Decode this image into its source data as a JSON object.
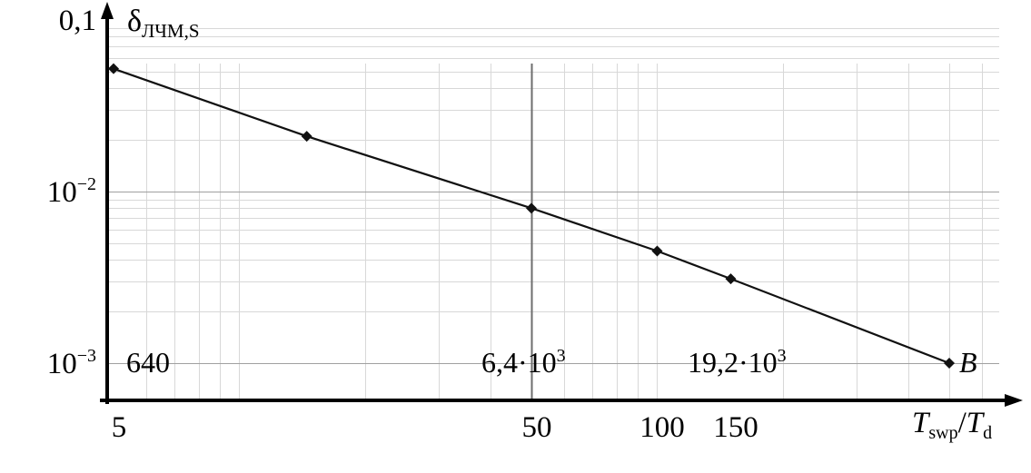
{
  "figure": {
    "background": "#ffffff"
  },
  "chart_data": {
    "type": "line",
    "x_scale": "log",
    "y_scale": "log",
    "xlim": [
      5,
      700
    ],
    "ylim": [
      0.001,
      0.1
    ],
    "grid": "on",
    "x_label_parts": [
      {
        "t": "T",
        "italic": true
      },
      {
        "t": "swp",
        "sub": true
      },
      {
        "t": "/"
      },
      {
        "t": "T",
        "italic": true
      },
      {
        "t": "d",
        "sub": true
      }
    ],
    "y_label_parts": [
      {
        "t": "δ"
      },
      {
        "t": "ЛЧМ,S",
        "sub": true
      }
    ],
    "series": [
      {
        "name": "lfm-quantization-error",
        "x": [
          5,
          14.5,
          50,
          100,
          150,
          500
        ],
        "y": [
          0.052,
          0.021,
          0.008,
          0.0045,
          0.0031,
          0.001
        ],
        "color": "#111111",
        "marker": "diamond",
        "end_label": "B"
      }
    ],
    "x_ticks": [
      {
        "value": 5,
        "label": "5"
      },
      {
        "value": 50,
        "label": "50"
      },
      {
        "value": 100,
        "label": "100"
      },
      {
        "value": 150,
        "label": "150"
      }
    ],
    "y_ticks": [
      {
        "value": 0.1,
        "parts": [
          {
            "t": "0,1"
          }
        ]
      },
      {
        "value": 0.01,
        "parts": [
          {
            "t": "10"
          },
          {
            "t": "−2",
            "sup": true
          }
        ]
      },
      {
        "value": 0.001,
        "parts": [
          {
            "t": "10"
          },
          {
            "t": "−3",
            "sup": true
          }
        ]
      }
    ],
    "annotations": [
      {
        "x": 5.35,
        "y": 0.001,
        "color": "#8f8f8f",
        "parts": [
          {
            "t": "640"
          }
        ]
      },
      {
        "x": 38,
        "y": 0.001,
        "color": "#8f8f8f",
        "parts": [
          {
            "t": "6,4·10"
          },
          {
            "t": "3",
            "sup": true
          }
        ]
      },
      {
        "x": 118,
        "y": 0.001,
        "color": "#8f8f8f",
        "parts": [
          {
            "t": "19,2·10"
          },
          {
            "t": "3",
            "sup": true
          }
        ]
      }
    ],
    "highlight_vline_x": 50,
    "colors": {
      "minor_grid": "#d8d8d8",
      "major_grid": "#a0a0a0",
      "highlight_grid": "#6e6e6e",
      "axis": "#000000",
      "annotation": "#8f8f8f"
    }
  }
}
